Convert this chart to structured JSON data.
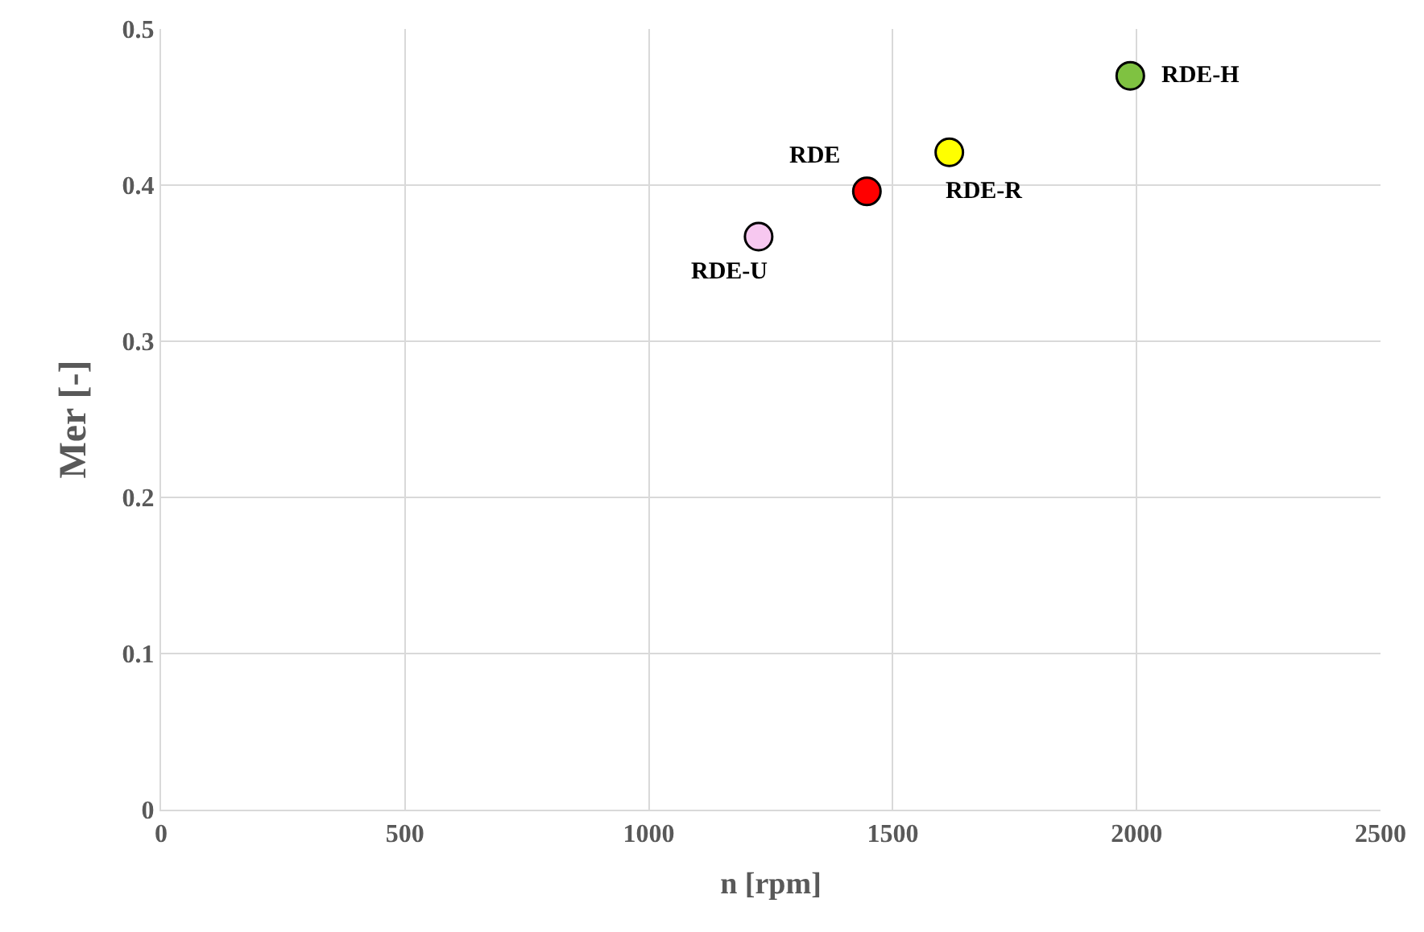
{
  "chart_data": {
    "type": "scatter",
    "xlabel": "n [rpm]",
    "ylabel": "Mer [-]",
    "x": [
      1225,
      1447,
      1616,
      1987
    ],
    "values": [
      0.367,
      0.396,
      0.421,
      0.47
    ],
    "colors": [
      "#f7c8f0",
      "#ff0000",
      "#ffff00",
      "#7fc241"
    ],
    "marker": "circle",
    "xlim": [
      0,
      2500
    ],
    "xticks": [
      0,
      500,
      1000,
      1500,
      2000,
      2500
    ],
    "ylim": [
      0,
      0.5
    ],
    "yticks": [
      0,
      0.1,
      0.2,
      0.3,
      0.4,
      0.5
    ],
    "grid": true,
    "legend": false,
    "annotations": [
      {
        "text": "RDE-U",
        "x": 1225,
        "y": 0.367
      },
      {
        "text": "RDE",
        "x": 1447,
        "y": 0.396
      },
      {
        "text": "RDE-R",
        "x": 1616,
        "y": 0.421
      },
      {
        "text": "RDE-H",
        "x": 1987,
        "y": 0.47
      }
    ]
  }
}
